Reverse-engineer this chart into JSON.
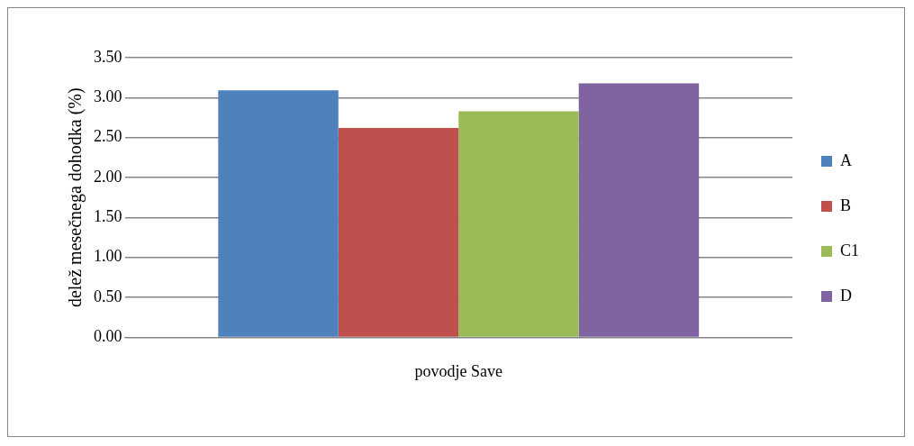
{
  "chart_data": {
    "type": "bar",
    "ylabel": "delež mesečnega dohodka (%)",
    "categories": [
      "povodje Save"
    ],
    "series": [
      {
        "name": "A",
        "color": "#4f81bd",
        "values": [
          3.09
        ]
      },
      {
        "name": "B",
        "color": "#c0504d",
        "values": [
          2.62
        ]
      },
      {
        "name": "C1",
        "color": "#9bbb59",
        "values": [
          2.83
        ]
      },
      {
        "name": "D",
        "color": "#8064a2",
        "values": [
          3.18
        ]
      }
    ],
    "ylim": [
      0,
      3.5
    ],
    "yticks": [
      {
        "value": 0,
        "label": "0.00"
      },
      {
        "value": 0.5,
        "label": "0.50"
      },
      {
        "value": 1,
        "label": "1.00"
      },
      {
        "value": 1.5,
        "label": "1.50"
      },
      {
        "value": 2,
        "label": "2.00"
      },
      {
        "value": 2.5,
        "label": "2.50"
      },
      {
        "value": 3,
        "label": "3.00"
      },
      {
        "value": 3.5,
        "label": "3.50"
      }
    ],
    "grid": "y",
    "legend": "right"
  }
}
